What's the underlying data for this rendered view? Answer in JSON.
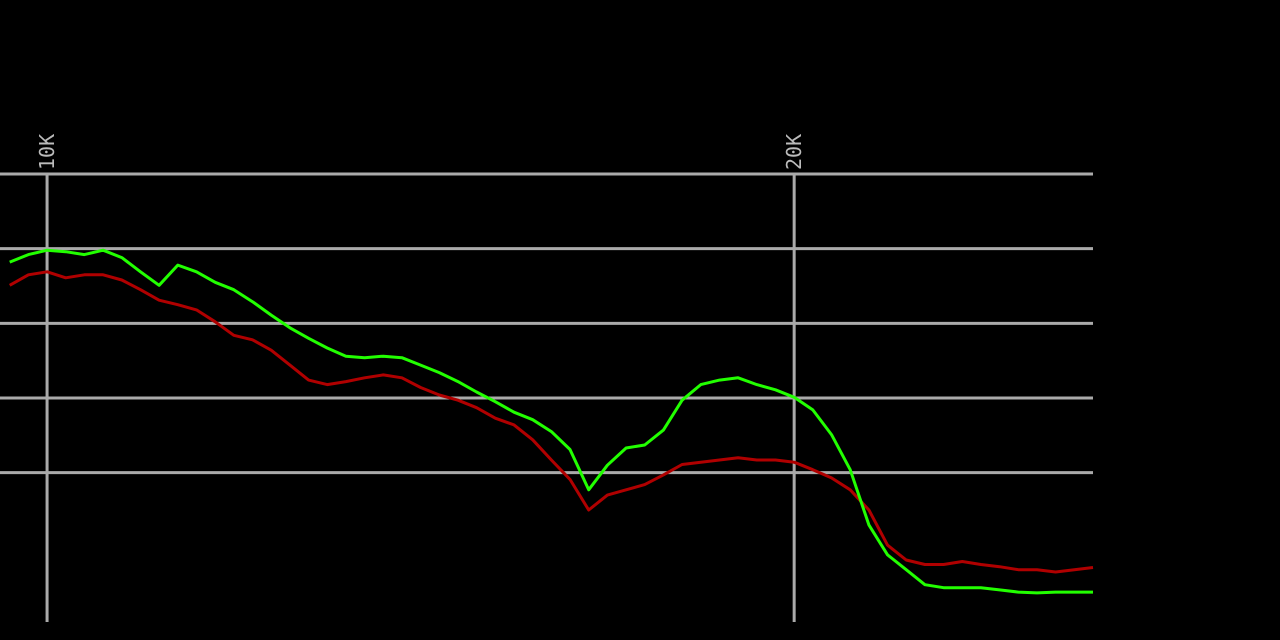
{
  "chart_data": {
    "type": "line",
    "x": [
      9500,
      9750,
      10000,
      10250,
      10500,
      10750,
      11000,
      11250,
      11500,
      11750,
      12000,
      12250,
      12500,
      12750,
      13000,
      13250,
      13500,
      13750,
      14000,
      14250,
      14500,
      14750,
      15000,
      15250,
      15500,
      15750,
      16000,
      16250,
      16500,
      16750,
      17000,
      17250,
      17500,
      17750,
      18000,
      18250,
      18500,
      18750,
      19000,
      19250,
      19500,
      19750,
      20000,
      20250,
      20500,
      20750,
      21000,
      21250,
      21500,
      21750,
      22000,
      22250,
      22500,
      22750,
      23000,
      23250,
      23500,
      23750,
      24000
    ],
    "series": [
      {
        "color": "#b00000",
        "values": [
          -14.9,
          -13.5,
          -13.1,
          -13.9,
          -13.5,
          -13.5,
          -14.2,
          -15.5,
          -16.9,
          -17.5,
          -18.2,
          -19.8,
          -21.6,
          -22.2,
          -23.6,
          -25.6,
          -27.6,
          -28.2,
          -27.8,
          -27.3,
          -26.9,
          -27.3,
          -28.6,
          -29.6,
          -30.3,
          -31.3,
          -32.7,
          -33.6,
          -35.6,
          -38.3,
          -40.9,
          -45.0,
          -43.0,
          -42.3,
          -41.6,
          -40.3,
          -38.9,
          -38.6,
          -38.3,
          -38.0,
          -38.3,
          -38.3,
          -38.6,
          -39.6,
          -40.7,
          -42.3,
          -45.0,
          -49.7,
          -51.7,
          -52.3,
          -52.3,
          -51.9,
          -52.3,
          -52.6,
          -53.0,
          -53.0,
          -53.3,
          -53.0,
          -52.7
        ]
      },
      {
        "color": "#22ff00",
        "values": [
          -11.8,
          -10.8,
          -10.2,
          -10.4,
          -10.8,
          -10.2,
          -11.2,
          -13.1,
          -14.9,
          -12.2,
          -13.1,
          -14.5,
          -15.5,
          -17.1,
          -18.9,
          -20.6,
          -22.0,
          -23.3,
          -24.4,
          -24.6,
          -24.4,
          -24.6,
          -25.6,
          -26.6,
          -27.8,
          -29.2,
          -30.5,
          -31.9,
          -32.9,
          -34.5,
          -36.9,
          -42.3,
          -39.0,
          -36.7,
          -36.3,
          -34.3,
          -30.3,
          -28.2,
          -27.6,
          -27.3,
          -28.2,
          -28.9,
          -29.9,
          -31.6,
          -34.9,
          -39.6,
          -47.0,
          -51.0,
          -53.0,
          -55.0,
          -55.4,
          -55.4,
          -55.4,
          -55.7,
          -56.0,
          -56.1,
          -56.0,
          -56.0,
          -56.0
        ]
      }
    ],
    "xlim": [
      9370,
      24000
    ],
    "xticks": [
      {
        "value": 10000,
        "label": "10K"
      },
      {
        "value": 20000,
        "label": "20K"
      }
    ],
    "ylim": [
      -60,
      0
    ],
    "yticks": [
      0,
      -10,
      -20,
      -30,
      -40
    ],
    "grid": true
  }
}
